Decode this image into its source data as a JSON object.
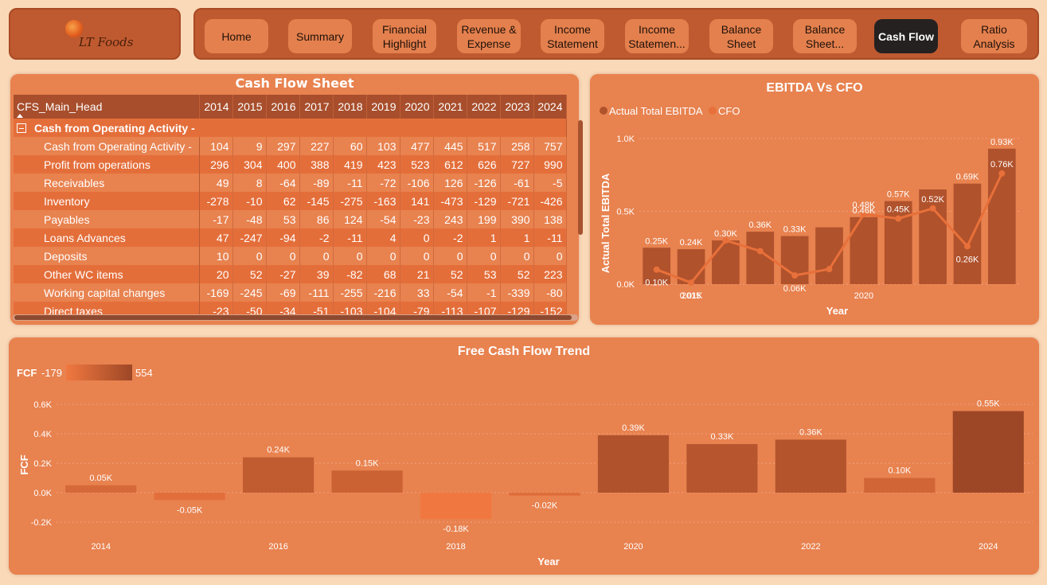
{
  "logo": {
    "text": "LT Foods"
  },
  "nav": [
    {
      "label": "Home",
      "active": false
    },
    {
      "label": "Summary",
      "active": false
    },
    {
      "label": "Financial\nHighlight",
      "active": false
    },
    {
      "label": "Revenue &\nExpense",
      "active": false
    },
    {
      "label": "Income\nStatement",
      "active": false
    },
    {
      "label": "Income\nStatemen...",
      "active": false
    },
    {
      "label": "Balance\nSheet",
      "active": false
    },
    {
      "label": "Balance\nSheet...",
      "active": false
    },
    {
      "label": "Cash Flow",
      "active": true
    },
    {
      "label": "Ratio\nAnalysis",
      "active": false
    }
  ],
  "cfs": {
    "title": "Cash Flow Sheet",
    "header": "CFS_Main_Head",
    "years": [
      "2014",
      "2015",
      "2016",
      "2017",
      "2018",
      "2019",
      "2020",
      "2021",
      "2022",
      "2023",
      "2024"
    ],
    "group_label": "Cash from Operating Activity -",
    "rows": [
      {
        "label": "Cash from Operating Activity -",
        "values": [
          "104",
          "9",
          "297",
          "227",
          "60",
          "103",
          "477",
          "445",
          "517",
          "258",
          "757"
        ]
      },
      {
        "label": "Profit from operations",
        "values": [
          "296",
          "304",
          "400",
          "388",
          "419",
          "423",
          "523",
          "612",
          "626",
          "727",
          "990"
        ]
      },
      {
        "label": "Receivables",
        "values": [
          "49",
          "8",
          "-64",
          "-89",
          "-11",
          "-72",
          "-106",
          "126",
          "-126",
          "-61",
          "-5"
        ]
      },
      {
        "label": "Inventory",
        "values": [
          "-278",
          "-10",
          "62",
          "-145",
          "-275",
          "-163",
          "141",
          "-473",
          "-129",
          "-721",
          "-426"
        ]
      },
      {
        "label": "Payables",
        "values": [
          "-17",
          "-48",
          "53",
          "86",
          "124",
          "-54",
          "-23",
          "243",
          "199",
          "390",
          "138"
        ]
      },
      {
        "label": "Loans Advances",
        "values": [
          "47",
          "-247",
          "-94",
          "-2",
          "-11",
          "4",
          "0",
          "-2",
          "1",
          "1",
          "-11"
        ]
      },
      {
        "label": "Deposits",
        "values": [
          "10",
          "0",
          "0",
          "0",
          "0",
          "0",
          "0",
          "0",
          "0",
          "0",
          "0"
        ]
      },
      {
        "label": "Other WC items",
        "values": [
          "20",
          "52",
          "-27",
          "39",
          "-82",
          "68",
          "21",
          "52",
          "53",
          "52",
          "223"
        ]
      },
      {
        "label": "Working capital changes",
        "values": [
          "-169",
          "-245",
          "-69",
          "-111",
          "-255",
          "-216",
          "33",
          "-54",
          "-1",
          "-339",
          "-80"
        ]
      },
      {
        "label": "Direct taxes",
        "values": [
          "-23",
          "-50",
          "-34",
          "-51",
          "-103",
          "-104",
          "-79",
          "-113",
          "-107",
          "-129",
          "-152"
        ]
      }
    ]
  },
  "ebitda_panel": {
    "title": "EBITDA Vs CFO"
  },
  "fcf_panel": {
    "title": "Free Cash Flow Trend",
    "legend_label": "FCF",
    "legend_min": "-179",
    "legend_max": "554"
  },
  "colors": {
    "bar_dark": "#B0522C",
    "bar_light": "#E8703A",
    "line": "#E8703A",
    "legend_ebitda": "#B0522C",
    "legend_cfo": "#E8703A"
  },
  "chart_data": [
    {
      "type": "bar",
      "title": "EBITDA Vs CFO",
      "xlabel": "Year",
      "ylabel": "Actual Total EBITDA",
      "x": [
        "2014",
        "2015",
        "2016",
        "2017",
        "2018",
        "2019",
        "2020",
        "2021",
        "2022",
        "2023",
        "2024"
      ],
      "x_tick_labels": [
        "2015",
        "2020"
      ],
      "y_ticks": [
        "0.0K",
        "0.5K",
        "1.0K"
      ],
      "ylim": [
        0,
        1000
      ],
      "legend_position": "top-left",
      "series": [
        {
          "name": "Actual Total EBITDA",
          "kind": "bar",
          "values": [
            250,
            240,
            300,
            360,
            330,
            390,
            460,
            570,
            650,
            690,
            930
          ],
          "labels": [
            "0.25K",
            "0.24K",
            "0.30K",
            "0.36K",
            "0.33K",
            "",
            "0.46K",
            "0.57K",
            "",
            "0.69K",
            "0.93K"
          ]
        },
        {
          "name": "CFO",
          "kind": "line",
          "values": [
            100,
            10,
            300,
            227,
            60,
            103,
            480,
            450,
            520,
            260,
            760
          ],
          "labels": [
            "0.10K",
            "0.01K",
            "",
            "",
            "0.06K",
            "",
            "0.48K",
            "0.45K",
            "0.52K",
            "0.26K",
            "0.76K"
          ]
        }
      ],
      "grid": true
    },
    {
      "type": "bar",
      "title": "Free Cash Flow Trend",
      "xlabel": "Year",
      "ylabel": "FCF",
      "categories": [
        "2014",
        "2015",
        "2016",
        "2017",
        "2018",
        "2019",
        "2020",
        "2021",
        "2022",
        "2023",
        "2024"
      ],
      "x_tick_labels": [
        "2014",
        "2016",
        "2018",
        "2020",
        "2022",
        "2024"
      ],
      "y_ticks": [
        "-0.2K",
        "0.0K",
        "0.2K",
        "0.4K",
        "0.6K"
      ],
      "ylim": [
        -250,
        650
      ],
      "values": [
        50,
        -50,
        240,
        150,
        -179,
        -20,
        390,
        330,
        360,
        100,
        554
      ],
      "labels": [
        "0.05K",
        "-0.05K",
        "0.24K",
        "0.15K",
        "-0.18K",
        "-0.02K",
        "0.39K",
        "0.33K",
        "0.36K",
        "0.10K",
        "0.55K"
      ],
      "grid": true
    }
  ]
}
